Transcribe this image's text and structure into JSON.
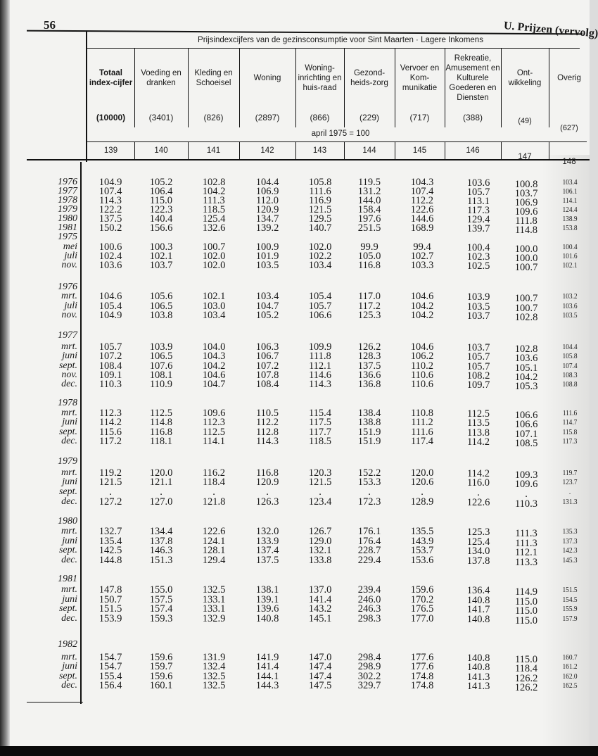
{
  "page_number": "56",
  "section_title": "U. Prijzen (vervolg)",
  "table": {
    "caption": "Prijsindexcijfers van de gezinsconsumptie voor Sint Maarten · Lagere Inkomens",
    "base_note": "april 1975 = 100",
    "columns": [
      {
        "label": "Totaal index-cijfer",
        "weight": "(10000)",
        "number": "139"
      },
      {
        "label": "Voeding en dranken",
        "weight": "(3401)",
        "number": "140"
      },
      {
        "label": "Kleding en Schoeisel",
        "weight": "(826)",
        "number": "141"
      },
      {
        "label": "Woning",
        "weight": "(2897)",
        "number": "142"
      },
      {
        "label": "Woning-inrichting en huis-raad",
        "weight": "(866)",
        "number": "143"
      },
      {
        "label": "Gezond-heids-zorg",
        "weight": "(229)",
        "number": "144"
      },
      {
        "label": "Vervoer en Kom-munikatie",
        "weight": "(717)",
        "number": "145"
      },
      {
        "label": "Rekreatie, Amusement en Kulturele Goederen en Diensten",
        "weight": "(388)",
        "number": "146"
      },
      {
        "label": "Ont-wikkeling",
        "weight": "(49)",
        "number": "147"
      },
      {
        "label": "Overig",
        "weight": "(627)",
        "number": "148"
      }
    ],
    "rows": [
      {
        "label": "1976",
        "values": [
          "104.9",
          "105.2",
          "102.8",
          "104.4",
          "105.8",
          "119.5",
          "104.3",
          "103.6",
          "100.8",
          "103.4"
        ]
      },
      {
        "label": "1977",
        "values": [
          "107.4",
          "106.4",
          "104.2",
          "106.9",
          "111.6",
          "131.2",
          "107.4",
          "105.7",
          "103.7",
          "106.1"
        ]
      },
      {
        "label": "1978",
        "values": [
          "114.3",
          "115.0",
          "111.3",
          "112.0",
          "116.9",
          "144.0",
          "112.2",
          "113.1",
          "106.9",
          "114.1"
        ]
      },
      {
        "label": "1979",
        "values": [
          "122.2",
          "122.3",
          "118.5",
          "120.9",
          "121.5",
          "158.4",
          "122.6",
          "117.3",
          "109.6",
          "124.4"
        ]
      },
      {
        "label": "1980",
        "values": [
          "137.5",
          "140.4",
          "125.4",
          "134.7",
          "129.5",
          "197.6",
          "144.6",
          "129.4",
          "111.8",
          "138.9"
        ]
      },
      {
        "label": "1981",
        "values": [
          "150.2",
          "156.6",
          "132.6",
          "139.2",
          "140.7",
          "251.5",
          "168.9",
          "139.7",
          "114.8",
          "153.8"
        ]
      },
      {
        "label": "1975",
        "values": []
      },
      {
        "label": "mei",
        "values": [
          "100.6",
          "100.3",
          "100.7",
          "100.9",
          "102.0",
          "99.9",
          "99.4",
          "100.4",
          "100.0",
          "100.4"
        ]
      },
      {
        "label": "juli",
        "values": [
          "102.4",
          "102.1",
          "102.0",
          "101.9",
          "102.2",
          "105.0",
          "102.7",
          "102.3",
          "100.0",
          "101.6"
        ]
      },
      {
        "label": "nov.",
        "values": [
          "103.6",
          "103.7",
          "102.0",
          "103.5",
          "103.4",
          "116.8",
          "103.3",
          "102.5",
          "100.7",
          "102.1"
        ]
      },
      {
        "label": "1976",
        "values": []
      },
      {
        "label": "mrt.",
        "values": [
          "104.6",
          "105.6",
          "102.1",
          "103.4",
          "105.4",
          "117.0",
          "104.6",
          "103.9",
          "100.7",
          "103.2"
        ]
      },
      {
        "label": "juli",
        "values": [
          "105.4",
          "106.5",
          "103.0",
          "104.7",
          "105.7",
          "117.2",
          "104.2",
          "103.5",
          "100.7",
          "103.6"
        ]
      },
      {
        "label": "nov.",
        "values": [
          "104.9",
          "103.8",
          "103.4",
          "105.2",
          "106.6",
          "125.3",
          "104.2",
          "103.7",
          "102.8",
          "103.5"
        ]
      },
      {
        "label": "1977",
        "values": []
      },
      {
        "label": "mrt.",
        "values": [
          "105.7",
          "103.9",
          "104.0",
          "106.3",
          "109.9",
          "126.2",
          "104.6",
          "103.7",
          "102.8",
          "104.4"
        ]
      },
      {
        "label": "juni",
        "values": [
          "107.2",
          "106.5",
          "104.3",
          "106.7",
          "111.8",
          "128.3",
          "106.2",
          "105.7",
          "103.6",
          "105.8"
        ]
      },
      {
        "label": "sept.",
        "values": [
          "108.4",
          "107.6",
          "104.2",
          "107.2",
          "112.1",
          "137.5",
          "110.2",
          "105.7",
          "105.1",
          "107.4"
        ]
      },
      {
        "label": "nov.",
        "values": [
          "109.1",
          "108.1",
          "104.6",
          "107.8",
          "114.6",
          "136.6",
          "110.6",
          "108.2",
          "104.2",
          "108.3"
        ]
      },
      {
        "label": "dec.",
        "values": [
          "110.3",
          "110.9",
          "104.7",
          "108.4",
          "114.3",
          "136.8",
          "110.6",
          "109.7",
          "105.3",
          "108.8"
        ]
      },
      {
        "label": "1978",
        "values": []
      },
      {
        "label": "mrt.",
        "values": [
          "112.3",
          "112.5",
          "109.6",
          "110.5",
          "115.4",
          "138.4",
          "110.8",
          "112.5",
          "106.6",
          "111.6"
        ]
      },
      {
        "label": "juni",
        "values": [
          "114.2",
          "114.8",
          "112.3",
          "112.2",
          "117.5",
          "138.8",
          "111.2",
          "113.5",
          "106.6",
          "114.7"
        ]
      },
      {
        "label": "sept.",
        "values": [
          "115.6",
          "116.8",
          "112.5",
          "112.8",
          "117.7",
          "151.9",
          "111.6",
          "113.8",
          "107.1",
          "115.8"
        ]
      },
      {
        "label": "dec.",
        "values": [
          "117.2",
          "118.1",
          "114.1",
          "114.3",
          "118.5",
          "151.9",
          "117.4",
          "114.2",
          "108.5",
          "117.3"
        ]
      },
      {
        "label": "1979",
        "values": []
      },
      {
        "label": "mrt.",
        "values": [
          "119.2",
          "120.0",
          "116.2",
          "116.8",
          "120.3",
          "152.2",
          "120.0",
          "114.2",
          "109.3",
          "119.7"
        ]
      },
      {
        "label": "juni",
        "values": [
          "121.5",
          "121.1",
          "118.4",
          "120.9",
          "121.5",
          "153.3",
          "120.6",
          "116.0",
          "109.6",
          "123.7"
        ]
      },
      {
        "label": "sept.",
        "values": [
          ".",
          ".",
          ".",
          ".",
          ".",
          ".",
          ".",
          ".",
          ".",
          "."
        ]
      },
      {
        "label": "dec.",
        "values": [
          "127.2",
          "127.0",
          "121.8",
          "126.3",
          "123.4",
          "172.3",
          "128.9",
          "122.6",
          "110.3",
          "131.3"
        ]
      },
      {
        "label": "1980",
        "values": []
      },
      {
        "label": "mrt.",
        "values": [
          "132.7",
          "134.4",
          "122.6",
          "132.0",
          "126.7",
          "176.1",
          "135.5",
          "125.3",
          "111.3",
          "135.3"
        ]
      },
      {
        "label": "juni",
        "values": [
          "135.4",
          "137.8",
          "124.1",
          "133.9",
          "129.0",
          "176.4",
          "143.9",
          "125.4",
          "111.3",
          "137.3"
        ]
      },
      {
        "label": "sept.",
        "values": [
          "142.5",
          "146.3",
          "128.1",
          "137.4",
          "132.1",
          "228.7",
          "153.7",
          "134.0",
          "112.1",
          "142.3"
        ]
      },
      {
        "label": "dec.",
        "values": [
          "144.8",
          "151.3",
          "129.4",
          "137.5",
          "133.8",
          "229.4",
          "153.6",
          "137.8",
          "113.3",
          "145.3"
        ]
      },
      {
        "label": "1981",
        "values": []
      },
      {
        "label": "mrt.",
        "values": [
          "147.8",
          "155.0",
          "132.5",
          "138.1",
          "137.0",
          "239.4",
          "159.6",
          "136.4",
          "114.9",
          "151.5"
        ]
      },
      {
        "label": "juni",
        "values": [
          "150.7",
          "157.5",
          "133.1",
          "139.1",
          "141.4",
          "246.0",
          "170.2",
          "140.8",
          "115.0",
          "154.5"
        ]
      },
      {
        "label": "sept.",
        "values": [
          "151.5",
          "157.4",
          "133.1",
          "139.6",
          "143.2",
          "246.3",
          "176.5",
          "141.7",
          "115.0",
          "155.9"
        ]
      },
      {
        "label": "dec.",
        "values": [
          "153.9",
          "159.3",
          "132.9",
          "140.8",
          "145.1",
          "298.3",
          "177.0",
          "140.8",
          "115.0",
          "157.9"
        ]
      },
      {
        "label": "1982",
        "values": []
      },
      {
        "label": "mrt.",
        "values": [
          "154.7",
          "159.6",
          "131.9",
          "141.9",
          "147.0",
          "298.4",
          "177.6",
          "140.8",
          "115.0",
          "160.7"
        ]
      },
      {
        "label": "juni",
        "values": [
          "154.7",
          "159.7",
          "132.4",
          "141.4",
          "147.4",
          "298.9",
          "177.6",
          "140.8",
          "118.4",
          "161.2"
        ]
      },
      {
        "label": "sept.",
        "values": [
          "155.4",
          "159.6",
          "132.5",
          "144.1",
          "147.4",
          "302.2",
          "174.8",
          "141.3",
          "126.2",
          "162.0"
        ]
      },
      {
        "label": "dec.",
        "values": [
          "156.4",
          "160.1",
          "132.5",
          "144.3",
          "147.5",
          "329.7",
          "174.8",
          "141.3",
          "126.2",
          "162.5"
        ]
      }
    ]
  }
}
